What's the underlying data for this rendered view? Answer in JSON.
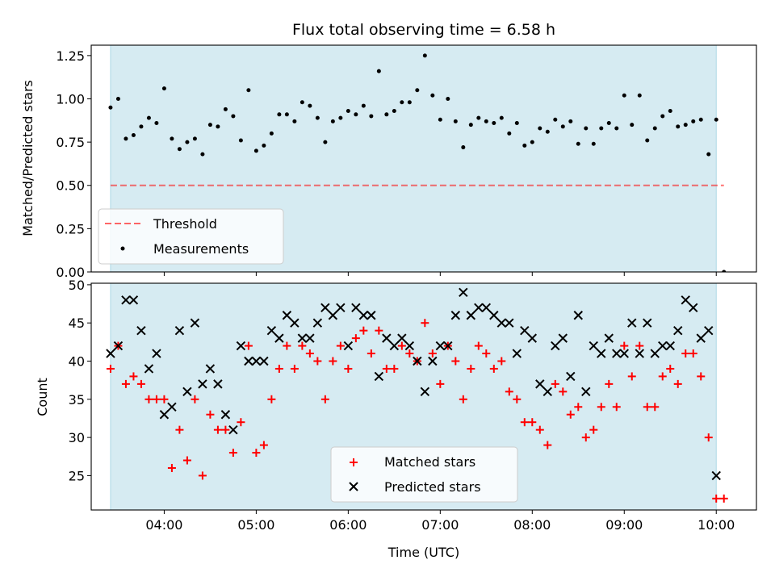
{
  "title": "Flux total observing time = 6.58 h",
  "colors": {
    "shade": "#add8e6",
    "threshold": "#ff0000",
    "measurement": "#000000",
    "matched": "#ff0000",
    "predicted": "#000000"
  },
  "chart_data": [
    {
      "type": "scatter",
      "panel": "top",
      "ylabel": "Matched/Predicted stars",
      "ylim": [
        0,
        1.31
      ],
      "yticks": [
        "0.00",
        "0.25",
        "0.50",
        "0.75",
        "1.00",
        "1.25"
      ],
      "shaded_interval_x": [
        "03:25",
        "10:00"
      ],
      "legend_position": "lower left",
      "legend": [
        "Threshold",
        "Measurements"
      ],
      "threshold": {
        "name": "Threshold",
        "value": 0.5,
        "style": "dashed"
      },
      "series": [
        {
          "name": "Measurements",
          "x": [
            "03:25",
            "03:30",
            "03:35",
            "03:40",
            "03:45",
            "03:50",
            "03:55",
            "04:00",
            "04:05",
            "04:10",
            "04:15",
            "04:20",
            "04:25",
            "04:30",
            "04:35",
            "04:40",
            "04:45",
            "04:50",
            "04:55",
            "05:00",
            "05:05",
            "05:10",
            "05:15",
            "05:20",
            "05:25",
            "05:30",
            "05:35",
            "05:40",
            "05:45",
            "05:50",
            "05:55",
            "06:00",
            "06:05",
            "06:10",
            "06:15",
            "06:20",
            "06:25",
            "06:30",
            "06:35",
            "06:40",
            "06:45",
            "06:50",
            "06:55",
            "07:00",
            "07:05",
            "07:10",
            "07:15",
            "07:20",
            "07:25",
            "07:30",
            "07:35",
            "07:40",
            "07:45",
            "07:50",
            "07:55",
            "08:00",
            "08:05",
            "08:10",
            "08:15",
            "08:20",
            "08:25",
            "08:30",
            "08:35",
            "08:40",
            "08:45",
            "08:50",
            "08:55",
            "09:00",
            "09:05",
            "09:10",
            "09:15",
            "09:20",
            "09:25",
            "09:30",
            "09:35",
            "09:40",
            "09:45",
            "09:50",
            "09:55",
            "10:00",
            "10:05"
          ],
          "y": [
            0.95,
            1.0,
            0.77,
            0.79,
            0.84,
            0.89,
            0.86,
            1.06,
            0.77,
            0.71,
            0.75,
            0.77,
            0.68,
            0.85,
            0.84,
            0.94,
            0.9,
            0.76,
            1.05,
            0.7,
            0.73,
            0.8,
            0.91,
            0.91,
            0.87,
            0.98,
            0.96,
            0.89,
            0.75,
            0.87,
            0.89,
            0.93,
            0.91,
            0.96,
            0.9,
            1.16,
            0.91,
            0.93,
            0.98,
            0.98,
            1.05,
            1.25,
            1.02,
            0.88,
            1.0,
            0.87,
            0.72,
            0.85,
            0.89,
            0.87,
            0.86,
            0.89,
            0.8,
            0.86,
            0.73,
            0.75,
            0.83,
            0.81,
            0.88,
            0.84,
            0.87,
            0.74,
            0.83,
            0.74,
            0.83,
            0.86,
            0.83,
            1.02,
            0.85,
            1.02,
            0.76,
            0.83,
            0.9,
            0.93,
            0.84,
            0.85,
            0.87,
            0.88,
            0.68,
            0.88,
            0.0
          ]
        }
      ]
    },
    {
      "type": "scatter",
      "panel": "bottom",
      "xlabel": "Time (UTC)",
      "ylabel": "Count",
      "ylim": [
        20.5,
        50.2
      ],
      "yticks": [
        "25",
        "30",
        "35",
        "40",
        "45",
        "50"
      ],
      "xticks": [
        "04:00",
        "05:00",
        "06:00",
        "07:00",
        "08:00",
        "09:00",
        "10:00"
      ],
      "shaded_interval_x": [
        "03:25",
        "10:00"
      ],
      "legend_position": "lower center",
      "legend": [
        "Matched stars",
        "Predicted stars"
      ],
      "series": [
        {
          "name": "Matched stars",
          "marker": "+",
          "x": [
            "03:25",
            "03:30",
            "03:35",
            "03:40",
            "03:45",
            "03:50",
            "03:55",
            "04:00",
            "04:05",
            "04:10",
            "04:15",
            "04:20",
            "04:25",
            "04:30",
            "04:35",
            "04:40",
            "04:45",
            "04:50",
            "04:55",
            "05:00",
            "05:05",
            "05:10",
            "05:15",
            "05:20",
            "05:25",
            "05:30",
            "05:35",
            "05:40",
            "05:45",
            "05:50",
            "05:55",
            "06:00",
            "06:05",
            "06:10",
            "06:15",
            "06:20",
            "06:25",
            "06:30",
            "06:35",
            "06:40",
            "06:45",
            "06:50",
            "06:55",
            "07:00",
            "07:05",
            "07:10",
            "07:15",
            "07:20",
            "07:25",
            "07:30",
            "07:35",
            "07:40",
            "07:45",
            "07:50",
            "07:55",
            "08:00",
            "08:05",
            "08:10",
            "08:15",
            "08:20",
            "08:25",
            "08:30",
            "08:35",
            "08:40",
            "08:45",
            "08:50",
            "08:55",
            "09:00",
            "09:05",
            "09:10",
            "09:15",
            "09:20",
            "09:25",
            "09:30",
            "09:35",
            "09:40",
            "09:45",
            "09:50",
            "09:55",
            "10:00",
            "10:05"
          ],
          "y": [
            39,
            42,
            37,
            38,
            37,
            35,
            35,
            35,
            26,
            31,
            27,
            35,
            25,
            33,
            31,
            31,
            28,
            32,
            42,
            28,
            29,
            35,
            39,
            42,
            39,
            42,
            41,
            40,
            35,
            40,
            42,
            39,
            43,
            44,
            41,
            44,
            39,
            39,
            42,
            41,
            40,
            45,
            41,
            37,
            42,
            40,
            35,
            39,
            42,
            41,
            39,
            40,
            36,
            35,
            32,
            32,
            31,
            29,
            37,
            36,
            33,
            34,
            30,
            31,
            34,
            37,
            34,
            42,
            38,
            42,
            34,
            34,
            38,
            39,
            37,
            41,
            41,
            38,
            30,
            22,
            22
          ]
        },
        {
          "name": "Predicted stars",
          "marker": "x",
          "x": [
            "03:25",
            "03:30",
            "03:35",
            "03:40",
            "03:45",
            "03:50",
            "03:55",
            "04:00",
            "04:05",
            "04:10",
            "04:15",
            "04:20",
            "04:25",
            "04:30",
            "04:35",
            "04:40",
            "04:45",
            "04:50",
            "04:55",
            "05:00",
            "05:05",
            "05:10",
            "05:15",
            "05:20",
            "05:25",
            "05:30",
            "05:35",
            "05:40",
            "05:45",
            "05:50",
            "05:55",
            "06:00",
            "06:05",
            "06:10",
            "06:15",
            "06:20",
            "06:25",
            "06:30",
            "06:35",
            "06:40",
            "06:45",
            "06:50",
            "06:55",
            "07:00",
            "07:05",
            "07:10",
            "07:15",
            "07:20",
            "07:25",
            "07:30",
            "07:35",
            "07:40",
            "07:45",
            "07:50",
            "07:55",
            "08:00",
            "08:05",
            "08:10",
            "08:15",
            "08:20",
            "08:25",
            "08:30",
            "08:35",
            "08:40",
            "08:45",
            "08:50",
            "08:55",
            "09:00",
            "09:05",
            "09:10",
            "09:15",
            "09:20",
            "09:25",
            "09:30",
            "09:35",
            "09:40",
            "09:45",
            "09:50",
            "09:55",
            "10:00"
          ],
          "y": [
            41,
            42,
            48,
            48,
            44,
            39,
            41,
            33,
            34,
            44,
            36,
            45,
            37,
            39,
            37,
            33,
            31,
            42,
            40,
            40,
            40,
            44,
            43,
            46,
            45,
            43,
            43,
            45,
            47,
            46,
            47,
            42,
            47,
            46,
            46,
            38,
            43,
            42,
            43,
            42,
            40,
            36,
            40,
            42,
            42,
            46,
            49,
            46,
            47,
            47,
            46,
            45,
            45,
            41,
            44,
            43,
            37,
            36,
            42,
            43,
            38,
            46,
            36,
            42,
            41,
            43,
            41,
            41,
            45,
            41,
            45,
            41,
            42,
            42,
            44,
            48,
            47,
            43,
            44,
            25
          ]
        }
      ]
    }
  ]
}
